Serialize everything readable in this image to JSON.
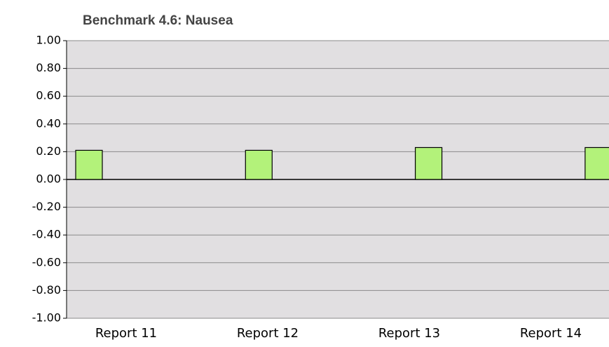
{
  "chart_data": {
    "type": "bar",
    "title": "Benchmark 4.6:  Nausea",
    "categories": [
      "Report 11",
      "Report 12",
      "Report 13",
      "Report 14"
    ],
    "values": [
      0.21,
      0.21,
      0.23,
      0.23
    ],
    "color": "#b3f27a",
    "ylim": [
      -1,
      1
    ],
    "yticks": [
      {
        "value": -1,
        "label": "-1.00"
      },
      {
        "value": -0.8,
        "label": "-0.80"
      },
      {
        "value": -0.6,
        "label": "-0.60"
      },
      {
        "value": -0.4,
        "label": "-0.40"
      },
      {
        "value": -0.2,
        "label": "-0.20"
      },
      {
        "value": 0,
        "label": "0.00"
      },
      {
        "value": 0.2,
        "label": "0.20"
      },
      {
        "value": 0.4,
        "label": "0.40"
      },
      {
        "value": 0.6,
        "label": "0.60"
      },
      {
        "value": 0.8,
        "label": "0.80"
      },
      {
        "value": 1,
        "label": "1.00"
      }
    ],
    "grid": true
  }
}
